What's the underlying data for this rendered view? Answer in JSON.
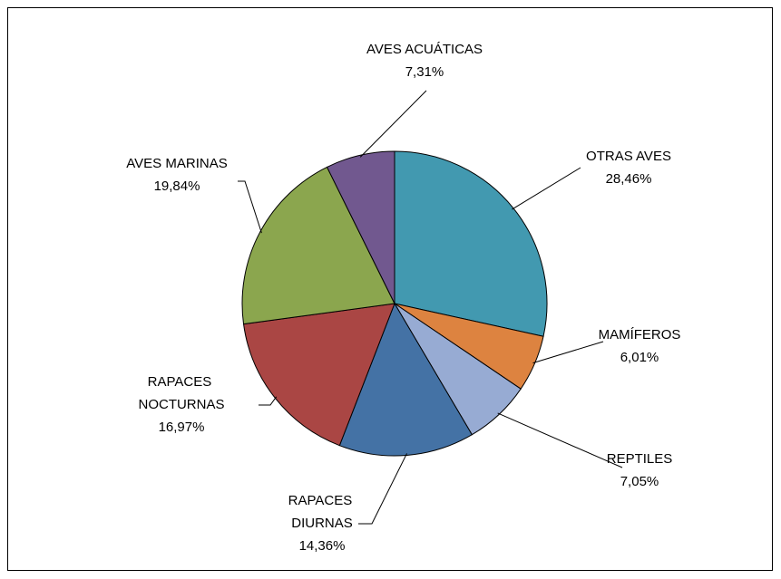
{
  "chart_data": {
    "type": "pie",
    "categories": [
      "OTRAS AVES",
      "MAMÍFEROS",
      "REPTILES",
      "RAPACES DIURNAS",
      "RAPACES NOCTURNAS",
      "AVES MARINAS",
      "AVES ACUÁTICAS"
    ],
    "values": [
      28.46,
      6.01,
      7.05,
      14.36,
      16.97,
      19.84,
      7.31
    ],
    "value_labels": [
      "28,46%",
      "6,01%",
      "7,05%",
      "14,36%",
      "16,97%",
      "19,84%",
      "7,31%"
    ],
    "colors": [
      "#4299b0",
      "#dd8340",
      "#97abd3",
      "#4472a5",
      "#aa4644",
      "#8ba64e",
      "#71588f"
    ]
  }
}
